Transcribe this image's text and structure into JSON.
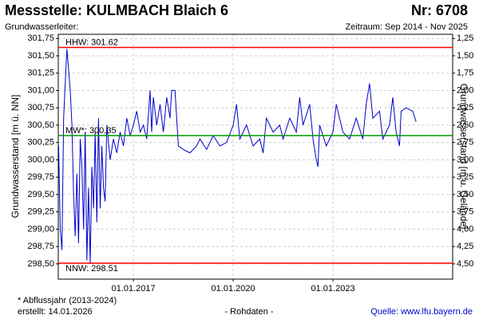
{
  "chart_data": {
    "type": "line",
    "title": "Messstelle: KULMBACH Blaich 6",
    "number": "Nr: 6708",
    "subtitle_left": "Grundwasserleiter:",
    "subtitle_right": "Zeitraum: Sep 2014 - Nov 2025",
    "ylabel": "Grundwasserstand [m ü. NN]",
    "y2label": "Grundwasserstand [m u. Gelände]",
    "footnote": "* Abflussjahr (2013-2024)",
    "created": "erstellt:  14.01.2026",
    "note": "- Rohdaten -",
    "source": "Quelle:  www.lfu.bayern.de",
    "xlim": [
      2014.74,
      2026.6
    ],
    "xticks": [
      {
        "value": 2017,
        "label": "01.01.2017"
      },
      {
        "value": 2020,
        "label": "01.01.2020"
      },
      {
        "value": 2023,
        "label": "01.01.2023"
      }
    ],
    "ylim": [
      298.28,
      301.81
    ],
    "yticks": [
      {
        "value": 298.5,
        "label": "298,50"
      },
      {
        "value": 298.75,
        "label": "298,75"
      },
      {
        "value": 299,
        "label": "299,00"
      },
      {
        "value": 299.25,
        "label": "299,25"
      },
      {
        "value": 299.5,
        "label": "299,50"
      },
      {
        "value": 299.75,
        "label": "299,75"
      },
      {
        "value": 300,
        "label": "300,00"
      },
      {
        "value": 300.25,
        "label": "300,25"
      },
      {
        "value": 300.5,
        "label": "300,50"
      },
      {
        "value": 300.75,
        "label": "300,75"
      },
      {
        "value": 301,
        "label": "301,00"
      },
      {
        "value": 301.25,
        "label": "301,25"
      },
      {
        "value": 301.5,
        "label": "301,50"
      },
      {
        "value": 301.75,
        "label": "301,75"
      }
    ],
    "y2lim": [
      4.72,
      1.19
    ],
    "y2ticks": [
      {
        "value": 1.25,
        "label": "1,25"
      },
      {
        "value": 1.5,
        "label": "1,50"
      },
      {
        "value": 1.75,
        "label": "1,75"
      },
      {
        "value": 2,
        "label": "2,00"
      },
      {
        "value": 2.25,
        "label": "2,25"
      },
      {
        "value": 2.5,
        "label": "2,50"
      },
      {
        "value": 2.75,
        "label": "2,75"
      },
      {
        "value": 3,
        "label": "3,00"
      },
      {
        "value": 3.25,
        "label": "3,25"
      },
      {
        "value": 3.5,
        "label": "3,50"
      },
      {
        "value": 3.75,
        "label": "3,75"
      },
      {
        "value": 4,
        "label": "4,00"
      },
      {
        "value": 4.25,
        "label": "4,25"
      },
      {
        "value": 4.5,
        "label": "4,50"
      }
    ],
    "grid": true,
    "reference_lines": [
      {
        "label": "HHW: 301.62",
        "value": 301.62,
        "color": "#ff0000"
      },
      {
        "label": "MW*: 300,35",
        "value": 300.35,
        "color": "#009900"
      },
      {
        "label": "NNW: 298.51",
        "value": 298.51,
        "color": "#ff0000"
      }
    ],
    "series": [
      {
        "name": "Grundwasserstand",
        "color": "#0000cc",
        "x": [
          2014.75,
          2014.8,
          2014.85,
          2014.9,
          2014.95,
          2015.0,
          2015.05,
          2015.1,
          2015.15,
          2015.2,
          2015.25,
          2015.3,
          2015.35,
          2015.4,
          2015.45,
          2015.5,
          2015.55,
          2015.6,
          2015.65,
          2015.7,
          2015.75,
          2015.8,
          2015.85,
          2015.9,
          2015.95,
          2016.0,
          2016.05,
          2016.1,
          2016.15,
          2016.2,
          2016.3,
          2016.4,
          2016.5,
          2016.6,
          2016.7,
          2016.8,
          2016.9,
          2017.0,
          2017.1,
          2017.2,
          2017.3,
          2017.4,
          2017.5,
          2017.55,
          2017.6,
          2017.7,
          2017.8,
          2017.9,
          2018.0,
          2018.1,
          2018.15,
          2018.25,
          2018.35,
          2018.5,
          2018.7,
          2018.9,
          2019.0,
          2019.2,
          2019.4,
          2019.6,
          2019.8,
          2020.0,
          2020.1,
          2020.2,
          2020.4,
          2020.6,
          2020.8,
          2020.9,
          2021.0,
          2021.2,
          2021.4,
          2021.5,
          2021.7,
          2021.9,
          2022.0,
          2022.1,
          2022.3,
          2022.4,
          2022.5,
          2022.55,
          2022.6,
          2022.8,
          2023.0,
          2023.1,
          2023.3,
          2023.5,
          2023.7,
          2023.9,
          2024.0,
          2024.1,
          2024.2,
          2024.4,
          2024.5,
          2024.7,
          2024.8,
          2024.9,
          2025.0,
          2025.05,
          2025.2,
          2025.4,
          2025.5
        ],
        "values": [
          300.2,
          299.0,
          298.7,
          300.6,
          301.1,
          301.6,
          301.3,
          301.0,
          300.5,
          299.5,
          298.9,
          299.8,
          298.8,
          300.3,
          299.9,
          299.0,
          300.4,
          298.55,
          299.6,
          298.5,
          299.9,
          299.3,
          300.4,
          299.1,
          300.6,
          299.3,
          300.2,
          299.6,
          299.4,
          300.5,
          300.0,
          300.3,
          300.1,
          300.4,
          300.2,
          300.6,
          300.35,
          300.5,
          300.7,
          300.4,
          300.5,
          300.3,
          301.0,
          300.4,
          300.9,
          300.5,
          300.8,
          300.4,
          300.9,
          300.6,
          301.0,
          301.0,
          300.2,
          300.15,
          300.1,
          300.2,
          300.3,
          300.15,
          300.35,
          300.2,
          300.25,
          300.5,
          300.8,
          300.3,
          300.5,
          300.2,
          300.3,
          300.1,
          300.6,
          300.4,
          300.5,
          300.3,
          300.6,
          300.4,
          300.9,
          300.5,
          300.8,
          300.3,
          300.0,
          299.9,
          300.5,
          300.2,
          300.4,
          300.8,
          300.4,
          300.3,
          300.6,
          300.3,
          300.8,
          301.1,
          300.6,
          300.7,
          300.3,
          300.5,
          300.9,
          300.4,
          300.2,
          300.7,
          300.75,
          300.7,
          300.55
        ]
      }
    ]
  }
}
